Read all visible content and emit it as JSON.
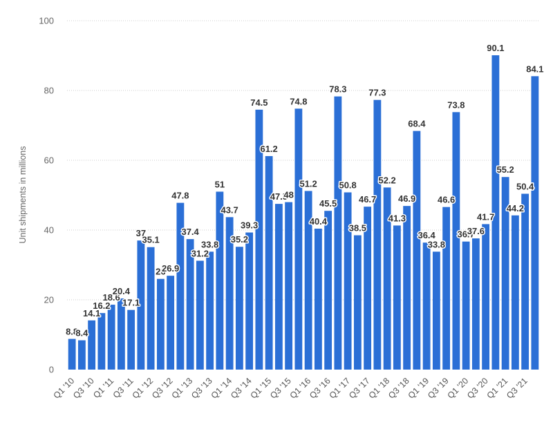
{
  "chart_data": {
    "type": "bar",
    "ylabel": "Unit shipments in millions",
    "xlabel": "",
    "ylim": [
      0,
      100
    ],
    "yticks": [
      0,
      20,
      40,
      60,
      80,
      100
    ],
    "grid": true,
    "bar_color": "#2b6fd6",
    "x_tick_labels": [
      "Q1 '10",
      "Q3 '10",
      "Q1 '11",
      "Q3 '11",
      "Q1 '12",
      "Q3 '12",
      "Q1 '13",
      "Q3 '13",
      "Q1 '14",
      "Q3 '14",
      "Q1 '15",
      "Q3 '15",
      "Q1 '16",
      "Q3 '16",
      "Q1 '17",
      "Q3 '17",
      "Q1 '18",
      "Q3 '18",
      "Q1 '19",
      "Q3 '19",
      "Q1 '20",
      "Q3 '20",
      "Q1 '21",
      "Q3 '21"
    ],
    "values": [
      8.8,
      8.4,
      14.1,
      16.2,
      18.6,
      20.4,
      17.1,
      37,
      35.1,
      26,
      26.9,
      47.8,
      37.4,
      31.2,
      33.8,
      51,
      43.7,
      35.2,
      39.3,
      74.5,
      61.2,
      47.5,
      48,
      74.8,
      51.2,
      40.4,
      45.5,
      78.3,
      50.8,
      38.5,
      46.7,
      77.3,
      52.2,
      41.3,
      46.9,
      68.4,
      36.4,
      33.8,
      46.6,
      73.8,
      36.7,
      37.6,
      41.7,
      90.1,
      55.2,
      44.2,
      50.4,
      84.1
    ],
    "data_labels": [
      "8.8",
      "8.4",
      "14.1",
      "16.2",
      "18.6",
      "20.4",
      "17.1",
      "37",
      "35.1",
      "26",
      "26.9",
      "47.8",
      "37.4",
      "31.2",
      "33.8",
      "51",
      "43.7",
      "35.2",
      "39.3",
      "74.5",
      "61.2",
      "47.5",
      "48",
      "74.8",
      "51.2",
      "40.4",
      "45.5",
      "78.3",
      "50.8",
      "38.5",
      "46.7",
      "77.3",
      "52.2",
      "41.3",
      "46.9",
      "68.4",
      "36.4",
      "33.8",
      "46.6",
      "73.8",
      "36.7",
      "37.6",
      "41.7",
      "90.1",
      "55.2",
      "44.2",
      "50.4",
      "84.1"
    ]
  }
}
